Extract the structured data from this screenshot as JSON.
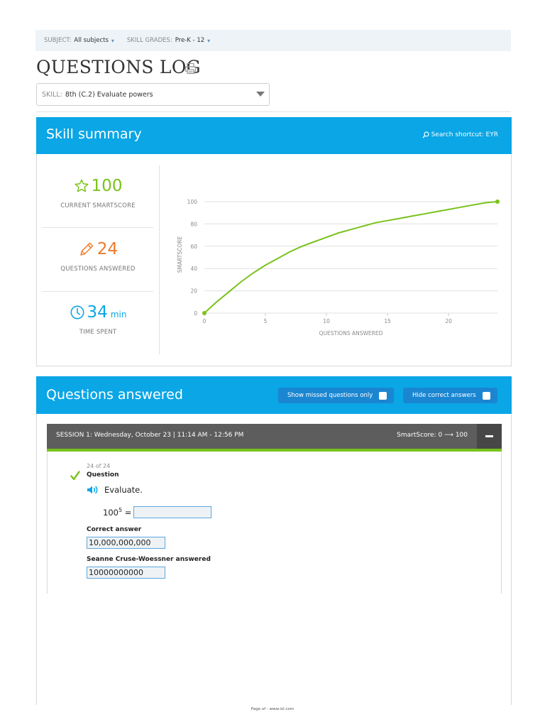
{
  "filters": {
    "subject_label": "SUBJECT:",
    "subject_value": "All subjects",
    "grades_label": "SKILL GRADES:",
    "grades_value": "Pre-K - 12"
  },
  "page_title": "QUESTIONS LOG",
  "skill_select": {
    "label": "SKILL:",
    "value": "8th (C.2)  Evaluate powers"
  },
  "skill_summary": {
    "title": "Skill summary",
    "search_shortcut": "Search shortcut: EYR",
    "smartscore": {
      "value": "100",
      "label": "CURRENT SMARTSCORE"
    },
    "questions": {
      "value": "24",
      "label": "QUESTIONS ANSWERED"
    },
    "time": {
      "value": "34",
      "unit": "min",
      "label": "TIME SPENT"
    }
  },
  "chart_data": {
    "type": "line",
    "xlabel": "QUESTIONS ANSWERED",
    "ylabel": "SMARTSCORE",
    "xlim": [
      0,
      24
    ],
    "ylim": [
      0,
      100
    ],
    "x_ticks": [
      0,
      5,
      10,
      15,
      20
    ],
    "y_ticks": [
      0,
      20,
      40,
      60,
      80,
      100
    ],
    "grid": true,
    "color": "#7ac21c",
    "x": [
      0,
      1,
      2,
      3,
      4,
      5,
      6,
      7,
      8,
      9,
      10,
      11,
      12,
      13,
      14,
      15,
      16,
      17,
      18,
      19,
      20,
      21,
      22,
      23,
      24
    ],
    "y": [
      0,
      10,
      19,
      28,
      36,
      43,
      49,
      55,
      60,
      64,
      68,
      72,
      75,
      78,
      81,
      83,
      85,
      87,
      89,
      91,
      93,
      95,
      97,
      99,
      100
    ]
  },
  "questions_answered": {
    "title": "Questions answered",
    "show_missed": "Show missed questions only",
    "hide_correct": "Hide correct answers"
  },
  "session": {
    "text": "SESSION 1: Wednesday, October 23 | 11:14 AM - 12:56 PM",
    "smartscore": "SmartScore: 0 ⟶ 100"
  },
  "question": {
    "counter": "24 of 24",
    "label": "Question",
    "prompt": "Evaluate.",
    "expr_base": "100",
    "expr_exp": "5",
    "expr_eq": " =",
    "correct_label": "Correct answer",
    "correct_value": "10,000,000,000",
    "student_label": "Seanne Cruse-Woessner answered",
    "student_value": "10000000000"
  },
  "footer": "Page of - www.ixl.com"
}
